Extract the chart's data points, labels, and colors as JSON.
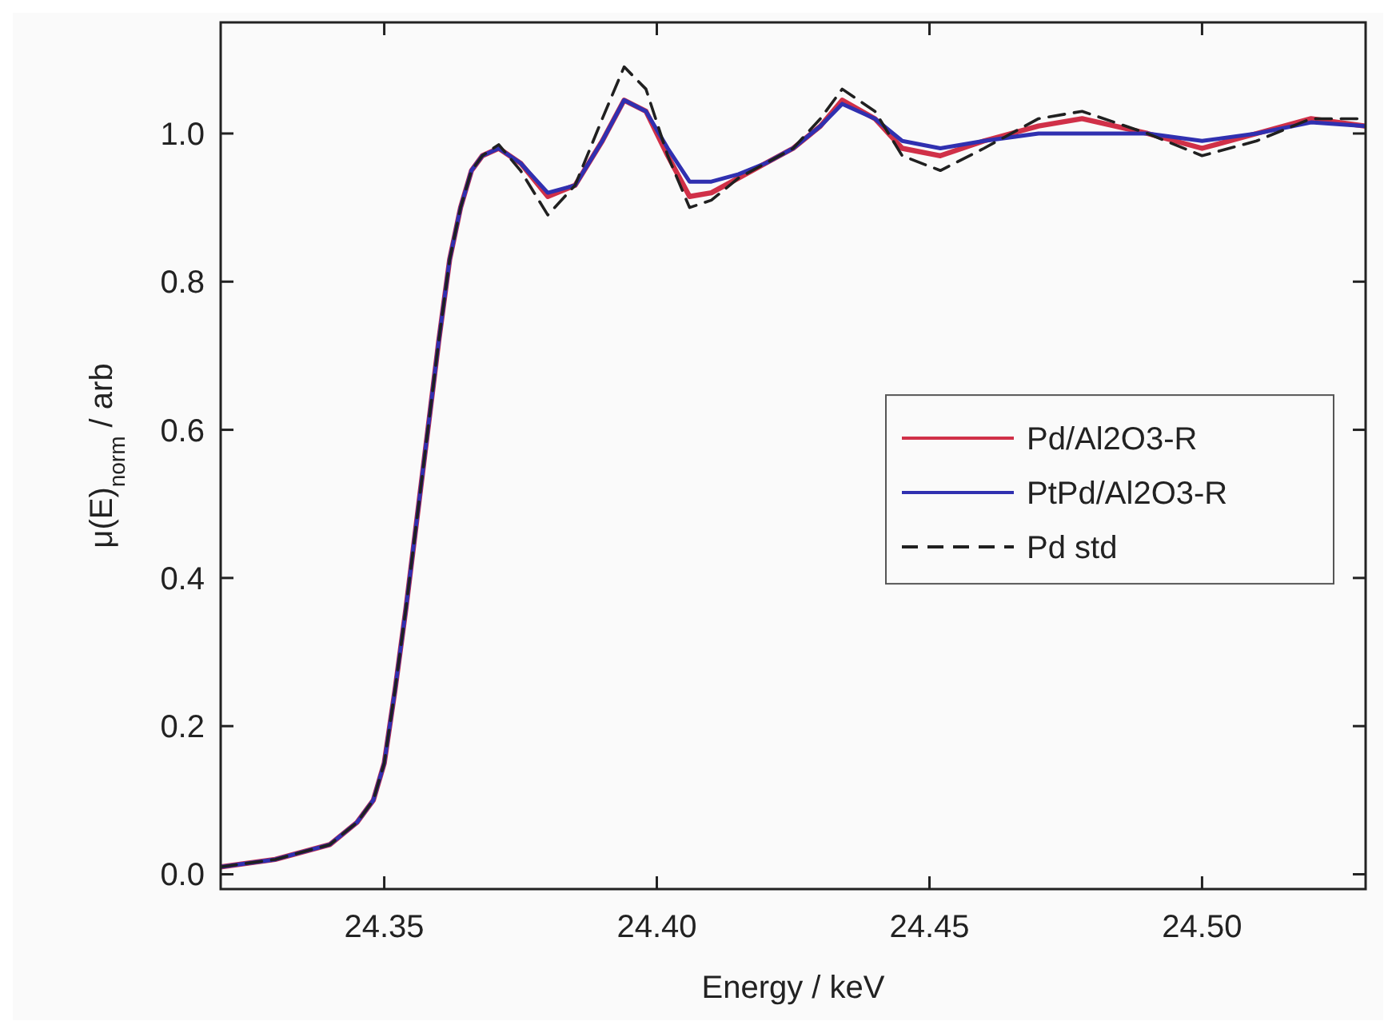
{
  "chart_data": {
    "type": "line",
    "xlabel": "Energy / keV",
    "ylabel": "μ(E)$_{norm}$ / arb",
    "xlim": [
      24.32,
      24.53
    ],
    "xticks": [
      24.35,
      {
        "value": 24.4,
        "label": "24.40"
      },
      24.45,
      {
        "value": 24.5,
        "label": "24.50"
      }
    ],
    "ylim": [
      -0.02,
      1.15
    ],
    "yticks": [
      {
        "value": 0,
        "label": "0.0"
      },
      0.2,
      0.4,
      0.6,
      0.8,
      {
        "value": 1,
        "label": "1.0"
      }
    ],
    "grid": false,
    "legend": "right",
    "marker": "none",
    "x": [
      24.32,
      24.33,
      24.34,
      24.345,
      24.348,
      24.35,
      24.352,
      24.354,
      24.356,
      24.358,
      24.36,
      24.362,
      24.364,
      24.366,
      24.368,
      24.371,
      24.375,
      24.38,
      24.385,
      24.39,
      24.394,
      24.398,
      24.402,
      24.406,
      24.41,
      24.415,
      24.42,
      24.425,
      24.43,
      24.434,
      24.44,
      24.445,
      24.452,
      24.46,
      24.47,
      24.478,
      24.49,
      24.5,
      24.51,
      24.52,
      24.53
    ],
    "series": [
      {
        "name": "Pd/Al2O3-R",
        "color": "#d03048",
        "line_style": "solid",
        "values": [
          0.01,
          0.02,
          0.04,
          0.07,
          0.1,
          0.15,
          0.25,
          0.36,
          0.48,
          0.6,
          0.72,
          0.83,
          0.9,
          0.95,
          0.97,
          0.98,
          0.96,
          0.915,
          0.93,
          0.99,
          1.045,
          1.03,
          0.97,
          0.915,
          0.92,
          0.94,
          0.96,
          0.98,
          1.01,
          1.045,
          1.02,
          0.98,
          0.97,
          0.99,
          1.01,
          1.02,
          1.0,
          0.98,
          1.0,
          1.02,
          1.01
        ]
      },
      {
        "name": "PtPd/Al2O3-R",
        "color": "#3030b0",
        "line_style": "solid",
        "values": [
          0.01,
          0.02,
          0.04,
          0.07,
          0.1,
          0.15,
          0.25,
          0.36,
          0.48,
          0.6,
          0.72,
          0.83,
          0.9,
          0.95,
          0.97,
          0.98,
          0.96,
          0.92,
          0.93,
          0.99,
          1.045,
          1.03,
          0.98,
          0.935,
          0.935,
          0.945,
          0.96,
          0.98,
          1.01,
          1.04,
          1.02,
          0.99,
          0.98,
          0.99,
          1.0,
          1.0,
          1.0,
          0.99,
          1.0,
          1.015,
          1.01
        ]
      },
      {
        "name": "Pd std",
        "color": "#202020",
        "line_style": "dashed",
        "values": [
          0.01,
          0.02,
          0.04,
          0.07,
          0.1,
          0.15,
          0.25,
          0.36,
          0.48,
          0.6,
          0.72,
          0.83,
          0.9,
          0.95,
          0.97,
          0.985,
          0.95,
          0.89,
          0.93,
          1.02,
          1.09,
          1.06,
          0.97,
          0.9,
          0.91,
          0.94,
          0.96,
          0.98,
          1.02,
          1.06,
          1.03,
          0.97,
          0.95,
          0.98,
          1.02,
          1.03,
          1.0,
          0.97,
          0.99,
          1.02,
          1.02
        ]
      }
    ]
  }
}
